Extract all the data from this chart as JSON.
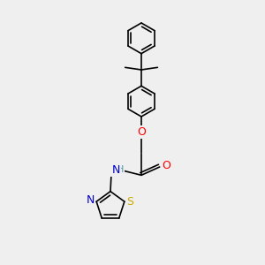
{
  "background_color": "#efefef",
  "line_color": "#000000",
  "bond_width": 1.2,
  "atom_colors": {
    "O": "#ff0000",
    "N": "#0000cd",
    "S": "#ccaa00",
    "H": "#5599aa",
    "C": "#000000"
  },
  "figsize": [
    3.0,
    3.0
  ],
  "dpi": 100
}
